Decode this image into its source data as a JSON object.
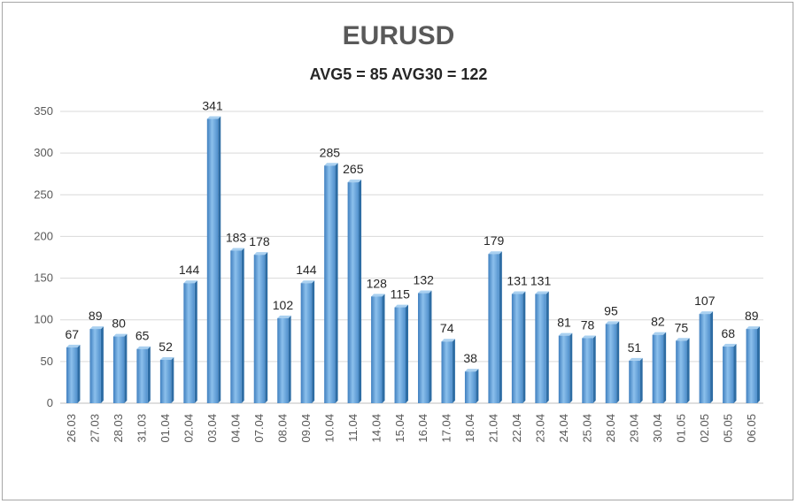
{
  "chart_data": {
    "type": "bar",
    "title": "EURUSD",
    "subtitle": "AVG5 = 85 AVG30 = 122",
    "categories": [
      "26.03",
      "27.03",
      "28.03",
      "31.03",
      "01.04",
      "02.04",
      "03.04",
      "04.04",
      "07.04",
      "08.04",
      "09.04",
      "10.04",
      "11.04",
      "14.04",
      "15.04",
      "16.04",
      "17.04",
      "18.04",
      "21.04",
      "22.04",
      "23.04",
      "24.04",
      "25.04",
      "28.04",
      "29.04",
      "30.04",
      "01.05",
      "02.05",
      "05.05",
      "06.05"
    ],
    "values": [
      67,
      89,
      80,
      65,
      52,
      144,
      341,
      183,
      178,
      102,
      144,
      285,
      265,
      128,
      115,
      132,
      74,
      38,
      179,
      131,
      131,
      81,
      78,
      95,
      51,
      82,
      75,
      107,
      68,
      89
    ],
    "ylim": [
      0,
      350
    ],
    "yticks": [
      0,
      50,
      100,
      150,
      200,
      250,
      300,
      350
    ],
    "grid": true,
    "bar_color": "#5b9bd5",
    "data_labels": true
  }
}
